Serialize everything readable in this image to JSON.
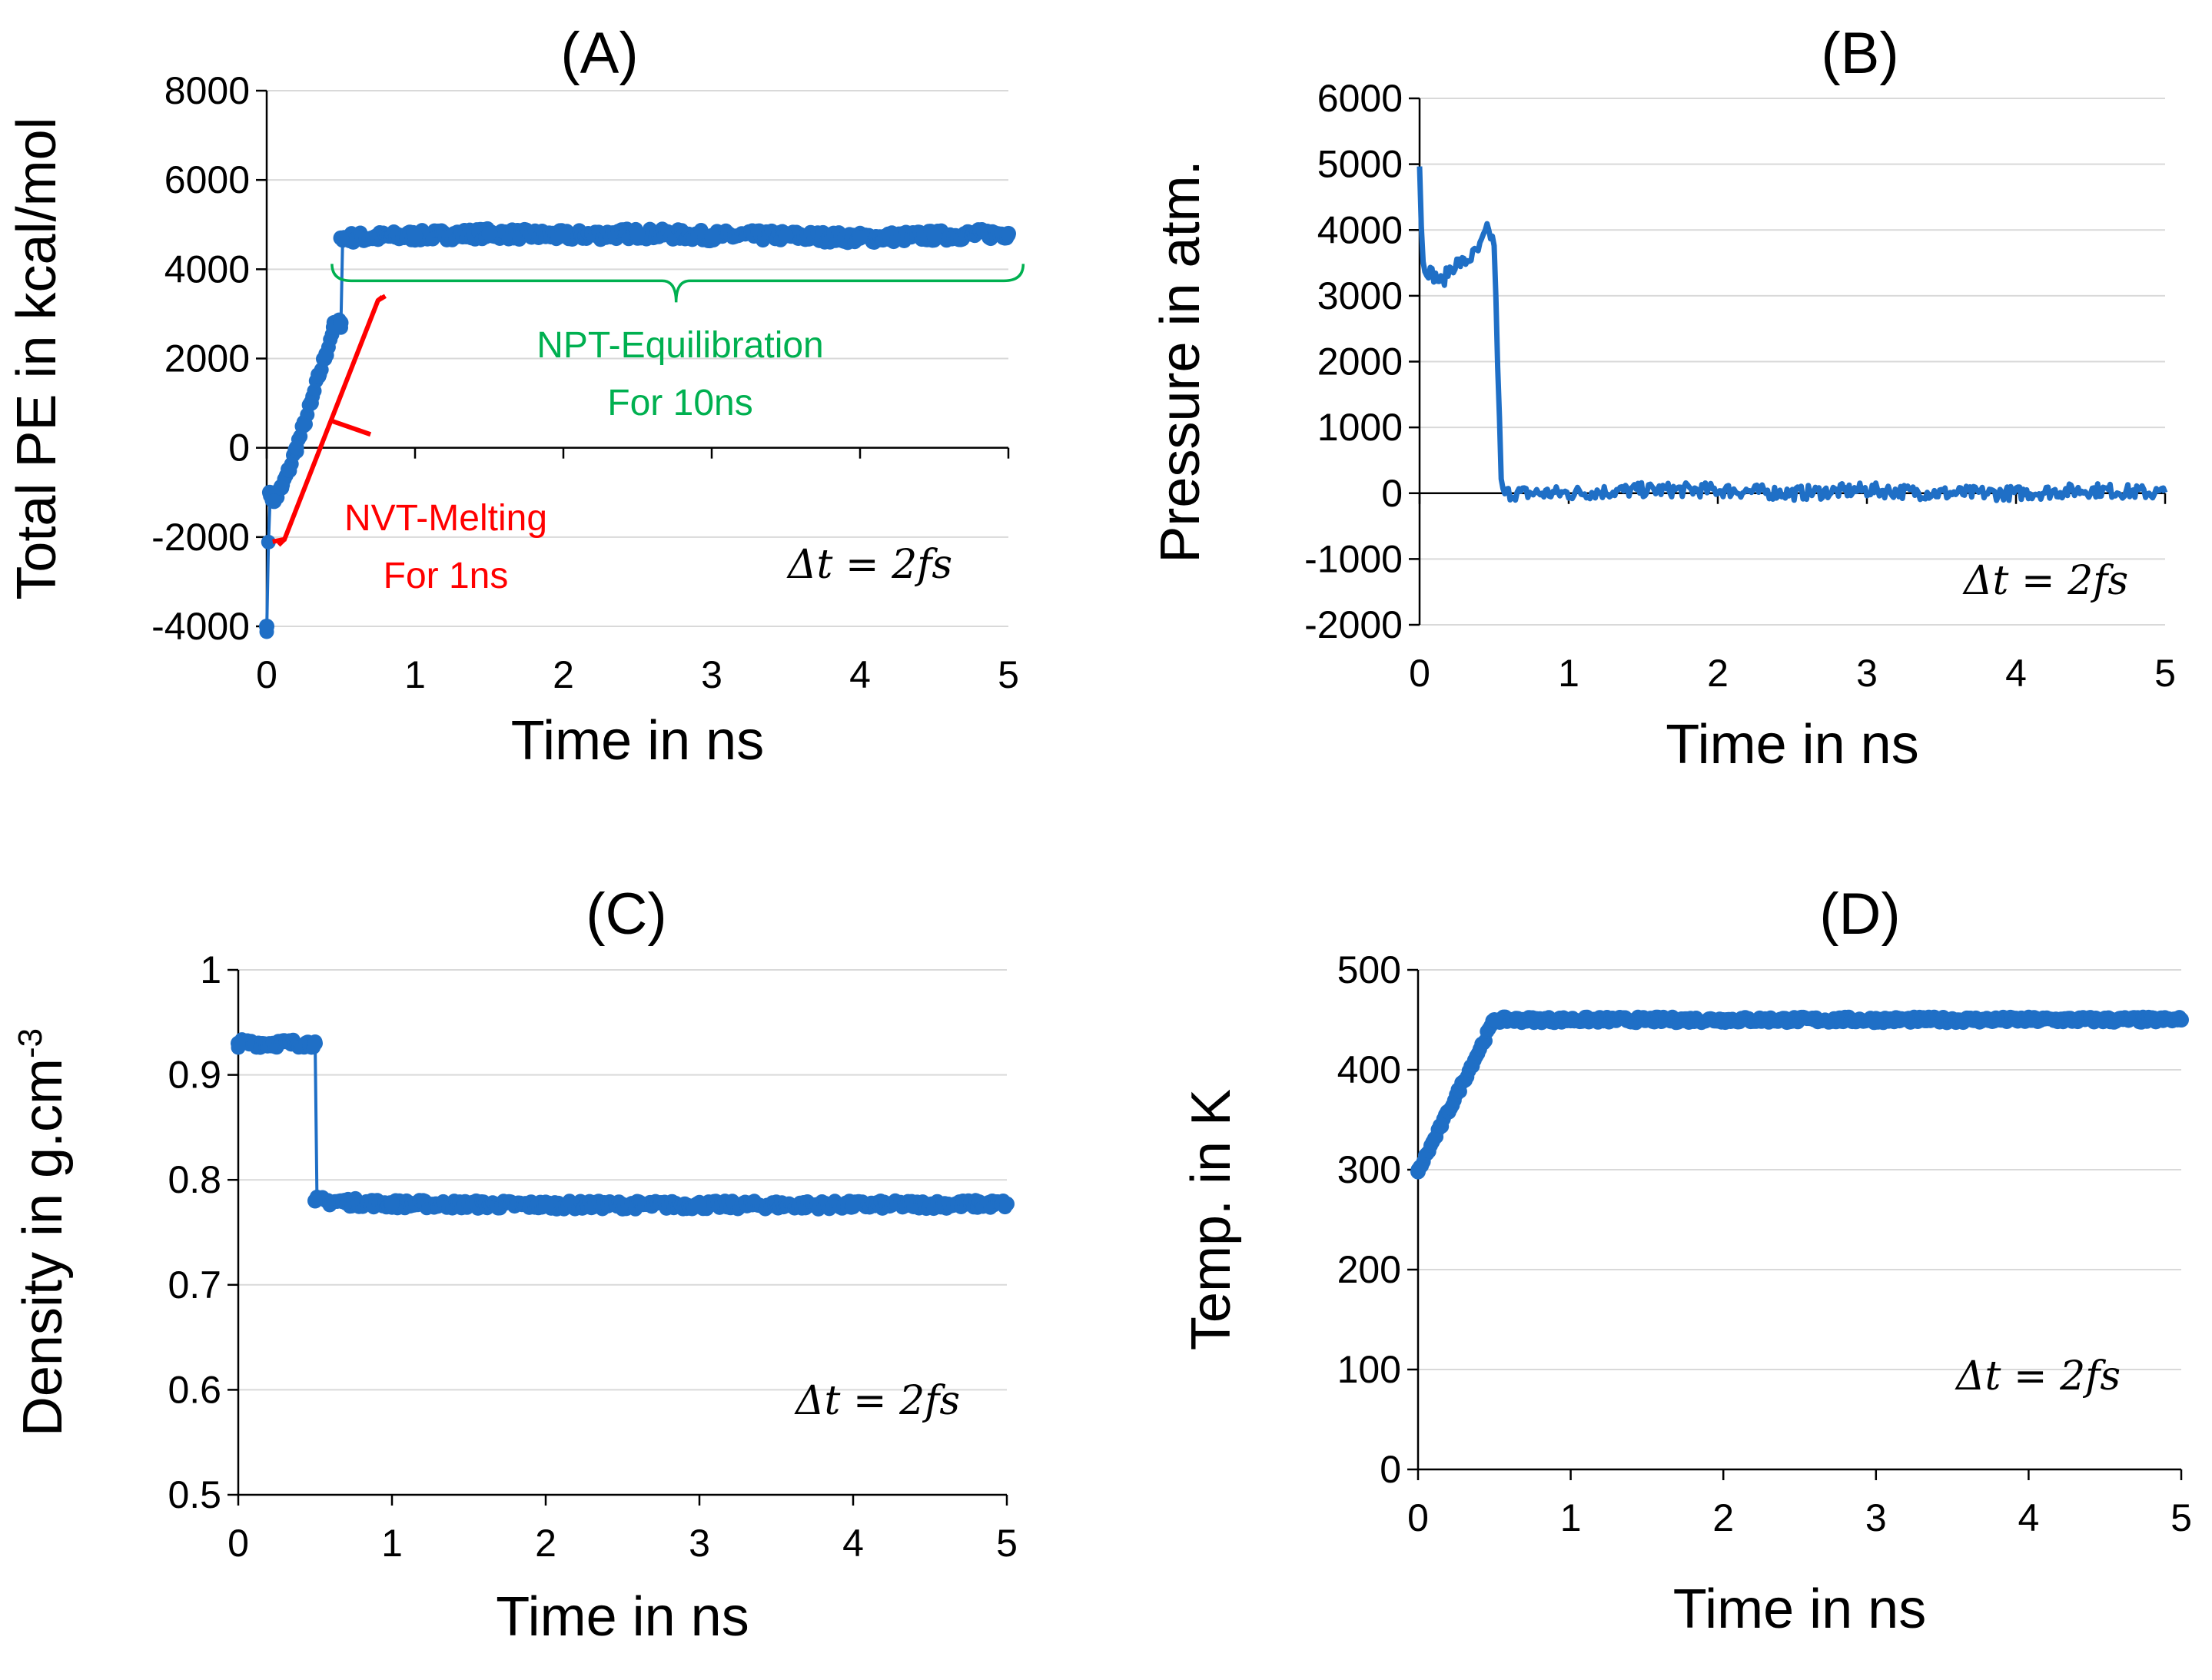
{
  "colors": {
    "series": "#1f6fc6",
    "nvt_annotation": "#ff0000",
    "npt_annotation": "#00b050",
    "grid": "#d9d9d9",
    "axis": "#000000"
  },
  "chart_data": [
    {
      "id": "A",
      "type": "scatter",
      "title": "(A)",
      "xlabel": "Time in ns",
      "ylabel": "Total PE in kcal/mol",
      "xlim": [
        0,
        5
      ],
      "ylim": [
        -4000,
        8000
      ],
      "xticks": [
        "0",
        "1",
        "2",
        "3",
        "4",
        "5"
      ],
      "yticks": [
        "-4000",
        "-2000",
        "0",
        "2000",
        "4000",
        "6000",
        "8000"
      ],
      "timestep_label": "Δt = 2fs",
      "grid": "horizontal",
      "annotations": [
        {
          "text_line1": "NVT-Melting",
          "text_line2": "For 1ns",
          "color": "red",
          "x_range": [
            0,
            0.5
          ]
        },
        {
          "text_line1": "NPT-Equilibration",
          "text_line2": "For 10ns",
          "color": "green",
          "x_range": [
            0.5,
            5
          ]
        }
      ],
      "series": [
        {
          "name": "Total PE",
          "x": [
            0,
            0.02,
            0.05,
            0.1,
            0.15,
            0.2,
            0.25,
            0.3,
            0.35,
            0.4,
            0.45,
            0.5,
            0.5,
            1,
            1.5,
            2,
            2.5,
            3,
            3.5,
            4,
            4.5,
            5
          ],
          "y": [
            -4000,
            -1000,
            -1200,
            -900,
            -500,
            0,
            500,
            1000,
            1600,
            2100,
            2700,
            2800,
            4700,
            4750,
            4800,
            4750,
            4800,
            4750,
            4750,
            4700,
            4750,
            4800
          ],
          "noise": 120
        }
      ]
    },
    {
      "id": "B",
      "type": "line",
      "title": "(B)",
      "xlabel": "Time in ns",
      "ylabel": "Pressure in atm.",
      "xlim": [
        0,
        5
      ],
      "ylim": [
        -2000,
        6000
      ],
      "xticks": [
        "0",
        "1",
        "2",
        "3",
        "4",
        "5"
      ],
      "yticks": [
        "-2000",
        "-1000",
        "0",
        "1000",
        "2000",
        "3000",
        "4000",
        "5000",
        "6000"
      ],
      "timestep_label": "Δt = 2fs",
      "grid": "horizontal",
      "series": [
        {
          "name": "Pressure",
          "x": [
            0,
            0.02,
            0.05,
            0.1,
            0.15,
            0.2,
            0.25,
            0.3,
            0.35,
            0.4,
            0.45,
            0.48,
            0.5,
            0.55,
            1,
            1.5,
            2,
            2.5,
            3,
            3.5,
            4,
            4.5,
            5
          ],
          "y": [
            5000,
            3500,
            3400,
            3300,
            3200,
            3400,
            3500,
            3500,
            3600,
            3700,
            4000,
            3900,
            3800,
            0,
            0,
            50,
            50,
            0,
            50,
            0,
            0,
            50,
            0
          ],
          "noise": 110
        }
      ]
    },
    {
      "id": "C",
      "type": "scatter",
      "title": "(C)",
      "xlabel": "Time in ns",
      "ylabel": "Density in g.cm",
      "ylabel_superscript": "-3",
      "xlim": [
        0,
        5
      ],
      "ylim": [
        0.5,
        1
      ],
      "xticks": [
        "0",
        "1",
        "2",
        "3",
        "4",
        "5"
      ],
      "yticks": [
        "0.5",
        "0.6",
        "0.7",
        "0.8",
        "0.9",
        "1"
      ],
      "timestep_label": "Δt = 2fs",
      "grid": "horizontal",
      "series": [
        {
          "name": "Density",
          "x": [
            0,
            0.5,
            0.5,
            1,
            2,
            3,
            4,
            5
          ],
          "y": [
            0.93,
            0.93,
            0.78,
            0.777,
            0.776,
            0.776,
            0.776,
            0.777
          ],
          "noise": 0.004
        }
      ]
    },
    {
      "id": "D",
      "type": "scatter",
      "title": "(D)",
      "xlabel": "Time in ns",
      "ylabel": "Temp. in K",
      "xlim": [
        0,
        5
      ],
      "ylim": [
        0,
        500
      ],
      "xticks": [
        "0",
        "1",
        "2",
        "3",
        "4",
        "5"
      ],
      "yticks": [
        "0",
        "100",
        "200",
        "300",
        "400",
        "500"
      ],
      "timestep_label": "Δt = 2fs",
      "grid": "horizontal",
      "series": [
        {
          "name": "Temperature",
          "x": [
            0,
            0.5,
            1,
            2,
            3,
            4,
            5
          ],
          "y": [
            298,
            450,
            450,
            450,
            450,
            450,
            450
          ],
          "noise": 3
        }
      ]
    }
  ]
}
